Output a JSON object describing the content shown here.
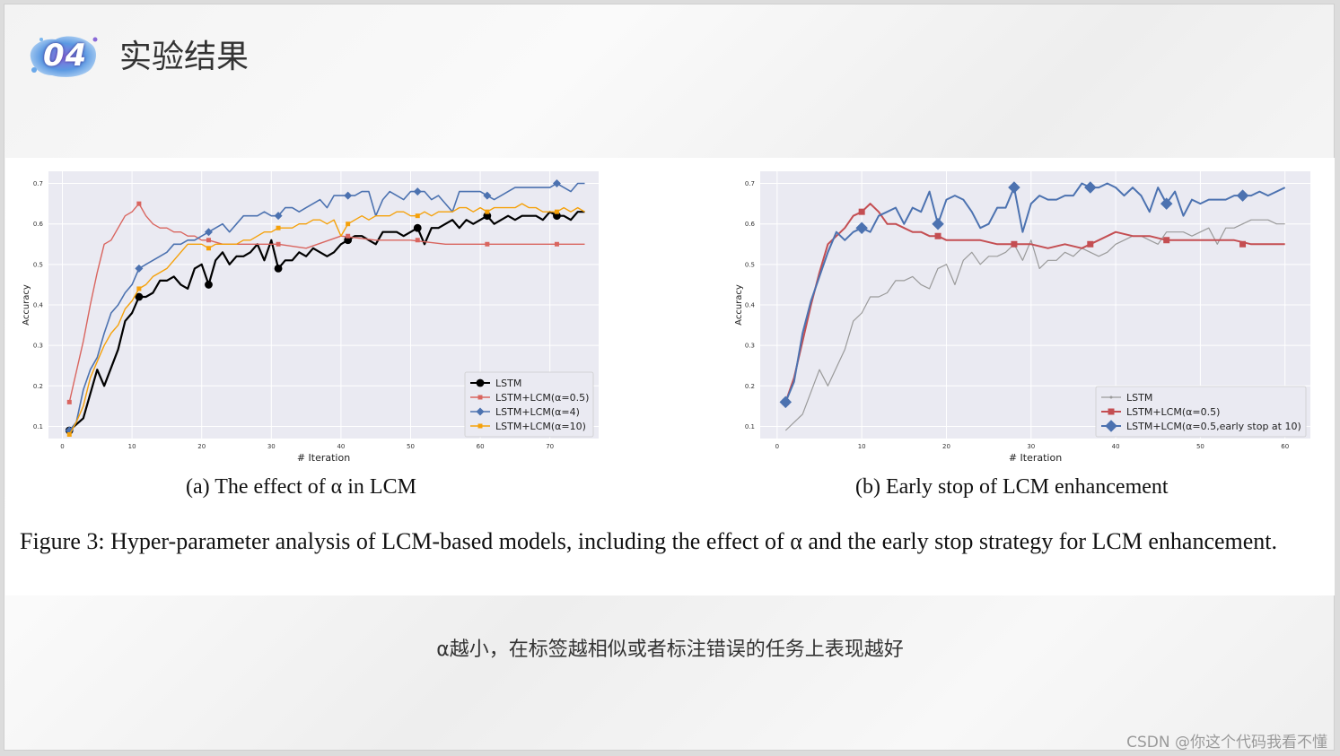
{
  "slide": {
    "section_number": "04",
    "title": "实验结果",
    "note": "α越小，在标签越相似或者标注错误的任务上表现越好",
    "watermark": "CSDN @你这个代码我看不懂"
  },
  "figure": {
    "caption": "Figure 3: Hyper-parameter analysis of LCM-based models, including the effect of α and the early stop strategy for LCM enhancement.",
    "subcaption_a": "(a) The effect of α in LCM",
    "subcaption_b": "(b) Early stop of LCM enhancement"
  },
  "chart_data": [
    {
      "type": "line",
      "xlabel": "# Iteration",
      "ylabel": "Accuracy",
      "xlim": [
        -2,
        77
      ],
      "ylim": [
        0.07,
        0.73
      ],
      "xticks": [
        0,
        10,
        20,
        30,
        40,
        50,
        60,
        70
      ],
      "yticks": [
        0.1,
        0.2,
        0.3,
        0.4,
        0.5,
        0.6,
        0.7
      ],
      "grid": true,
      "legend": "bottom-right",
      "series": [
        {
          "name": "LSTM",
          "color": "#000000",
          "marker": "circle",
          "line_width": 2.2,
          "x": [
            1,
            3,
            5,
            6,
            8,
            9,
            10,
            11,
            12,
            13,
            14,
            15,
            16,
            17,
            18,
            19,
            20,
            21,
            22,
            23,
            24,
            25,
            26,
            27,
            28,
            29,
            30,
            31,
            32,
            33,
            34,
            35,
            36,
            37,
            38,
            39,
            40,
            41,
            42,
            43,
            44,
            45,
            46,
            47,
            48,
            49,
            50,
            51,
            52,
            53,
            54,
            55,
            56,
            57,
            58,
            59,
            60,
            61,
            62,
            63,
            64,
            65,
            66,
            67,
            68,
            69,
            70,
            71,
            72,
            73,
            74,
            75
          ],
          "y": [
            0.09,
            0.12,
            0.24,
            0.2,
            0.29,
            0.36,
            0.38,
            0.42,
            0.42,
            0.43,
            0.46,
            0.46,
            0.47,
            0.45,
            0.44,
            0.49,
            0.5,
            0.45,
            0.51,
            0.53,
            0.5,
            0.52,
            0.52,
            0.53,
            0.55,
            0.51,
            0.56,
            0.49,
            0.51,
            0.51,
            0.53,
            0.52,
            0.54,
            0.53,
            0.52,
            0.53,
            0.55,
            0.56,
            0.57,
            0.57,
            0.56,
            0.55,
            0.58,
            0.58,
            0.58,
            0.57,
            0.58,
            0.59,
            0.55,
            0.59,
            0.59,
            0.6,
            0.61,
            0.59,
            0.61,
            0.6,
            0.61,
            0.62,
            0.6,
            0.61,
            0.62,
            0.61,
            0.62,
            0.62,
            0.62,
            0.61,
            0.63,
            0.62,
            0.62,
            0.61,
            0.63,
            0.63
          ],
          "marker_x": [
            1,
            11,
            21,
            31,
            41,
            51,
            61,
            71
          ],
          "marker_y": [
            0.09,
            0.42,
            0.45,
            0.49,
            0.56,
            0.59,
            0.62,
            0.62
          ]
        },
        {
          "name": "LSTM+LCM(α=0.5)",
          "color": "#d9655f",
          "marker": "square",
          "line_width": 1.4,
          "x": [
            1,
            3,
            4,
            5,
            6,
            7,
            8,
            9,
            10,
            11,
            12,
            13,
            14,
            15,
            16,
            17,
            18,
            19,
            20,
            21,
            23,
            25,
            27,
            29,
            31,
            35,
            40,
            45,
            50,
            55,
            60,
            65,
            70,
            75
          ],
          "y": [
            0.16,
            0.31,
            0.4,
            0.48,
            0.55,
            0.56,
            0.59,
            0.62,
            0.63,
            0.65,
            0.62,
            0.6,
            0.59,
            0.59,
            0.58,
            0.58,
            0.57,
            0.57,
            0.56,
            0.56,
            0.55,
            0.55,
            0.55,
            0.55,
            0.55,
            0.54,
            0.57,
            0.56,
            0.56,
            0.55,
            0.55,
            0.55,
            0.55,
            0.55
          ],
          "marker_x": [
            1,
            11,
            21,
            31,
            41,
            51,
            61,
            71
          ],
          "marker_y": [
            0.16,
            0.65,
            0.56,
            0.55,
            0.57,
            0.56,
            0.55,
            0.55
          ]
        },
        {
          "name": "LSTM+LCM(α=4)",
          "color": "#4c72b0",
          "marker": "diamond",
          "line_width": 1.6,
          "x": [
            1,
            2,
            3,
            4,
            5,
            6,
            7,
            8,
            9,
            10,
            11,
            12,
            13,
            14,
            15,
            16,
            17,
            18,
            19,
            20,
            21,
            22,
            23,
            24,
            25,
            26,
            27,
            28,
            29,
            30,
            31,
            32,
            33,
            34,
            35,
            36,
            37,
            38,
            39,
            40,
            41,
            42,
            43,
            44,
            45,
            46,
            47,
            48,
            49,
            50,
            51,
            52,
            53,
            54,
            55,
            56,
            57,
            58,
            59,
            60,
            61,
            62,
            63,
            64,
            65,
            66,
            67,
            68,
            69,
            70,
            71,
            72,
            73,
            74,
            75
          ],
          "y": [
            0.09,
            0.11,
            0.19,
            0.24,
            0.27,
            0.33,
            0.38,
            0.4,
            0.43,
            0.45,
            0.49,
            0.5,
            0.51,
            0.52,
            0.53,
            0.55,
            0.55,
            0.56,
            0.56,
            0.57,
            0.58,
            0.59,
            0.6,
            0.58,
            0.6,
            0.62,
            0.62,
            0.62,
            0.63,
            0.62,
            0.62,
            0.64,
            0.64,
            0.63,
            0.64,
            0.65,
            0.66,
            0.64,
            0.67,
            0.67,
            0.67,
            0.67,
            0.68,
            0.68,
            0.62,
            0.66,
            0.68,
            0.67,
            0.66,
            0.68,
            0.68,
            0.68,
            0.66,
            0.67,
            0.65,
            0.63,
            0.68,
            0.68,
            0.68,
            0.68,
            0.67,
            0.66,
            0.67,
            0.68,
            0.69,
            0.69,
            0.69,
            0.69,
            0.69,
            0.69,
            0.7,
            0.69,
            0.68,
            0.7,
            0.7
          ],
          "marker_x": [
            1,
            11,
            21,
            31,
            41,
            51,
            61,
            71
          ],
          "marker_y": [
            0.09,
            0.49,
            0.58,
            0.62,
            0.67,
            0.68,
            0.67,
            0.7
          ]
        },
        {
          "name": "LSTM+LCM(α=10)",
          "color": "#f5a10a",
          "marker": "square",
          "line_width": 1.4,
          "x": [
            1,
            2,
            3,
            4,
            5,
            6,
            7,
            8,
            9,
            10,
            11,
            12,
            13,
            14,
            15,
            16,
            17,
            18,
            19,
            20,
            21,
            22,
            23,
            24,
            25,
            26,
            27,
            28,
            29,
            30,
            31,
            32,
            33,
            34,
            35,
            36,
            37,
            38,
            39,
            40,
            41,
            42,
            43,
            44,
            45,
            46,
            47,
            48,
            49,
            50,
            51,
            52,
            53,
            54,
            55,
            56,
            57,
            58,
            59,
            60,
            61,
            62,
            63,
            64,
            65,
            66,
            67,
            68,
            69,
            70,
            71,
            72,
            73,
            74,
            75
          ],
          "y": [
            0.08,
            0.11,
            0.15,
            0.22,
            0.26,
            0.3,
            0.33,
            0.35,
            0.39,
            0.41,
            0.44,
            0.45,
            0.47,
            0.48,
            0.49,
            0.51,
            0.53,
            0.55,
            0.55,
            0.55,
            0.54,
            0.55,
            0.55,
            0.55,
            0.55,
            0.56,
            0.56,
            0.57,
            0.58,
            0.58,
            0.59,
            0.59,
            0.59,
            0.6,
            0.6,
            0.61,
            0.61,
            0.6,
            0.61,
            0.57,
            0.6,
            0.61,
            0.62,
            0.61,
            0.62,
            0.62,
            0.62,
            0.63,
            0.63,
            0.62,
            0.62,
            0.63,
            0.62,
            0.63,
            0.63,
            0.63,
            0.64,
            0.64,
            0.63,
            0.64,
            0.63,
            0.64,
            0.64,
            0.64,
            0.64,
            0.65,
            0.64,
            0.64,
            0.63,
            0.63,
            0.63,
            0.64,
            0.63,
            0.64,
            0.63
          ],
          "marker_x": [
            1,
            11,
            21,
            31,
            41,
            51,
            61,
            71
          ],
          "marker_y": [
            0.08,
            0.44,
            0.54,
            0.59,
            0.6,
            0.62,
            0.63,
            0.63
          ]
        }
      ]
    },
    {
      "type": "line",
      "xlabel": "# Iteration",
      "ylabel": "Accuracy",
      "xlim": [
        -2,
        63
      ],
      "ylim": [
        0.07,
        0.73
      ],
      "xticks": [
        0,
        10,
        20,
        30,
        40,
        50,
        60
      ],
      "yticks": [
        0.1,
        0.2,
        0.3,
        0.4,
        0.5,
        0.6,
        0.7
      ],
      "grid": true,
      "legend": "bottom-right",
      "series": [
        {
          "name": "LSTM",
          "color": "#9a9a9a",
          "marker": "small-tick",
          "line_width": 1.2,
          "x": [
            1,
            3,
            5,
            6,
            8,
            9,
            10,
            11,
            12,
            13,
            14,
            15,
            16,
            17,
            18,
            19,
            20,
            21,
            22,
            23,
            24,
            25,
            26,
            27,
            28,
            29,
            30,
            31,
            32,
            33,
            34,
            35,
            36,
            37,
            38,
            39,
            40,
            41,
            42,
            43,
            44,
            45,
            46,
            47,
            48,
            49,
            50,
            51,
            52,
            53,
            54,
            55,
            56,
            57,
            58,
            59,
            60
          ],
          "y": [
            0.09,
            0.13,
            0.24,
            0.2,
            0.29,
            0.36,
            0.38,
            0.42,
            0.42,
            0.43,
            0.46,
            0.46,
            0.47,
            0.45,
            0.44,
            0.49,
            0.5,
            0.45,
            0.51,
            0.53,
            0.5,
            0.52,
            0.52,
            0.53,
            0.55,
            0.51,
            0.56,
            0.49,
            0.51,
            0.51,
            0.53,
            0.52,
            0.54,
            0.53,
            0.52,
            0.53,
            0.55,
            0.56,
            0.57,
            0.57,
            0.56,
            0.55,
            0.58,
            0.58,
            0.58,
            0.57,
            0.58,
            0.59,
            0.55,
            0.59,
            0.59,
            0.6,
            0.61,
            0.61,
            0.61,
            0.6,
            0.6
          ]
        },
        {
          "name": "LSTM+LCM(α=0.5)",
          "color": "#c44e52",
          "marker": "square",
          "line_width": 2,
          "x": [
            1,
            2,
            3,
            4,
            5,
            6,
            7,
            8,
            9,
            10,
            11,
            12,
            13,
            14,
            15,
            16,
            17,
            18,
            19,
            20,
            22,
            24,
            26,
            28,
            30,
            32,
            34,
            36,
            38,
            40,
            42,
            44,
            46,
            48,
            50,
            52,
            54,
            56,
            58,
            60
          ],
          "y": [
            0.16,
            0.22,
            0.31,
            0.4,
            0.48,
            0.55,
            0.57,
            0.59,
            0.62,
            0.63,
            0.65,
            0.63,
            0.6,
            0.6,
            0.59,
            0.58,
            0.58,
            0.57,
            0.57,
            0.56,
            0.56,
            0.56,
            0.55,
            0.55,
            0.55,
            0.54,
            0.55,
            0.54,
            0.56,
            0.58,
            0.57,
            0.57,
            0.56,
            0.56,
            0.56,
            0.56,
            0.56,
            0.55,
            0.55,
            0.55
          ],
          "marker_x": [
            1,
            10,
            19,
            28,
            37,
            46,
            55
          ],
          "marker_y": [
            0.16,
            0.63,
            0.57,
            0.55,
            0.55,
            0.56,
            0.55
          ]
        },
        {
          "name": "LSTM+LCM(α=0.5,early stop at 10)",
          "color": "#4c72b0",
          "marker": "diamond",
          "line_width": 2,
          "x": [
            1,
            2,
            3,
            4,
            5,
            6,
            7,
            8,
            9,
            10,
            11,
            12,
            13,
            14,
            15,
            16,
            17,
            18,
            19,
            20,
            21,
            22,
            23,
            24,
            25,
            26,
            27,
            28,
            29,
            30,
            31,
            32,
            33,
            34,
            35,
            36,
            37,
            38,
            39,
            40,
            41,
            42,
            43,
            44,
            45,
            46,
            47,
            48,
            49,
            50,
            51,
            52,
            53,
            54,
            55,
            56,
            57,
            58,
            59,
            60
          ],
          "y": [
            0.16,
            0.21,
            0.33,
            0.41,
            0.47,
            0.53,
            0.58,
            0.56,
            0.58,
            0.59,
            0.58,
            0.62,
            0.63,
            0.64,
            0.6,
            0.64,
            0.63,
            0.68,
            0.6,
            0.66,
            0.67,
            0.66,
            0.63,
            0.59,
            0.6,
            0.64,
            0.64,
            0.69,
            0.58,
            0.65,
            0.67,
            0.66,
            0.66,
            0.67,
            0.67,
            0.7,
            0.69,
            0.69,
            0.7,
            0.69,
            0.67,
            0.69,
            0.67,
            0.63,
            0.69,
            0.65,
            0.68,
            0.62,
            0.66,
            0.65,
            0.66,
            0.66,
            0.66,
            0.67,
            0.67,
            0.67,
            0.68,
            0.67,
            0.68,
            0.69
          ],
          "marker_x": [
            1,
            10,
            19,
            28,
            37,
            46,
            55
          ],
          "marker_y": [
            0.16,
            0.59,
            0.6,
            0.69,
            0.69,
            0.65,
            0.67
          ]
        }
      ]
    }
  ]
}
